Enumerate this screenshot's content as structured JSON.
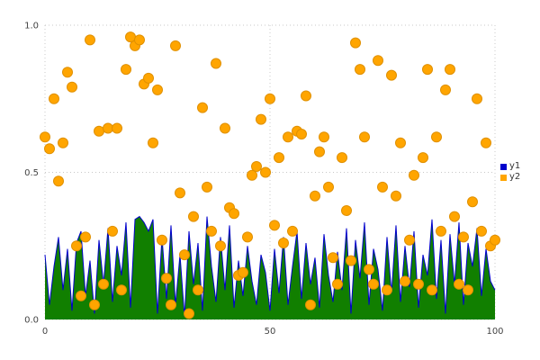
{
  "chart_data": {
    "type": "mixed",
    "title": "",
    "xlabel": "",
    "ylabel": "",
    "xlim": [
      0,
      100
    ],
    "ylim": [
      0,
      1
    ],
    "x_ticks": [
      "0",
      "50",
      "100"
    ],
    "x_tick_values": [
      0,
      50,
      100
    ],
    "y_ticks": [
      "0.0",
      "0.5",
      "1.0"
    ],
    "y_tick_values": [
      0,
      0.5,
      1
    ],
    "grid": true,
    "legend_position": "right",
    "series": [
      {
        "name": "y1",
        "type": "area",
        "color": "#0000cc",
        "fill": "#117f00",
        "x_start": 0,
        "x_step": 1,
        "values": [
          0.22,
          0.05,
          0.18,
          0.28,
          0.1,
          0.24,
          0.03,
          0.26,
          0.3,
          0.08,
          0.2,
          0.02,
          0.27,
          0.12,
          0.31,
          0.06,
          0.25,
          0.15,
          0.33,
          0.04,
          0.34,
          0.35,
          0.33,
          0.3,
          0.34,
          0.02,
          0.28,
          0.07,
          0.32,
          0.05,
          0.22,
          0.01,
          0.3,
          0.12,
          0.26,
          0.03,
          0.35,
          0.18,
          0.06,
          0.28,
          0.1,
          0.32,
          0.04,
          0.2,
          0.08,
          0.25,
          0.13,
          0.05,
          0.22,
          0.16,
          0.03,
          0.24,
          0.09,
          0.28,
          0.05,
          0.18,
          0.3,
          0.07,
          0.26,
          0.12,
          0.21,
          0.04,
          0.29,
          0.15,
          0.06,
          0.23,
          0.1,
          0.31,
          0.02,
          0.27,
          0.14,
          0.33,
          0.05,
          0.24,
          0.17,
          0.03,
          0.28,
          0.09,
          0.32,
          0.06,
          0.25,
          0.11,
          0.3,
          0.04,
          0.22,
          0.15,
          0.34,
          0.07,
          0.27,
          0.02,
          0.29,
          0.12,
          0.33,
          0.05,
          0.26,
          0.18,
          0.31,
          0.08,
          0.24,
          0.13,
          0.1
        ]
      },
      {
        "name": "y2",
        "type": "scatter",
        "color": "#ffa500",
        "stroke": "#e09000",
        "x_start": 0,
        "x_step": 1,
        "values": [
          0.62,
          0.58,
          0.75,
          0.47,
          0.6,
          0.84,
          0.79,
          0.25,
          0.08,
          0.28,
          0.95,
          0.05,
          0.64,
          0.12,
          0.65,
          0.3,
          0.65,
          0.1,
          0.85,
          0.96,
          0.93,
          0.95,
          0.8,
          0.82,
          0.6,
          0.78,
          0.27,
          0.14,
          0.05,
          0.93,
          0.43,
          0.22,
          0.02,
          0.35,
          0.1,
          0.72,
          0.45,
          0.3,
          0.87,
          0.25,
          0.65,
          0.38,
          0.36,
          0.15,
          0.16,
          0.28,
          0.49,
          0.52,
          0.68,
          0.5,
          0.75,
          0.32,
          0.55,
          0.26,
          0.62,
          0.3,
          0.64,
          0.63,
          0.76,
          0.05,
          0.42,
          0.57,
          0.62,
          0.45,
          0.21,
          0.12,
          0.55,
          0.37,
          0.2,
          0.94,
          0.85,
          0.62,
          0.17,
          0.12,
          0.88,
          0.45,
          0.1,
          0.83,
          0.42,
          0.6,
          0.13,
          0.27,
          0.49,
          0.12,
          0.55,
          0.85,
          0.1,
          0.62,
          0.3,
          0.78,
          0.85,
          0.35,
          0.12,
          0.28,
          0.1,
          0.4,
          0.75,
          0.3,
          0.6,
          0.25,
          0.27
        ]
      }
    ]
  },
  "colors": {
    "grid": "#c8c8c8",
    "tick_text": "#444444",
    "background": "#ffffff"
  },
  "legend": {
    "items": [
      {
        "label": "y1",
        "color": "#0000cc"
      },
      {
        "label": "y2",
        "color": "#ffa500"
      }
    ]
  }
}
